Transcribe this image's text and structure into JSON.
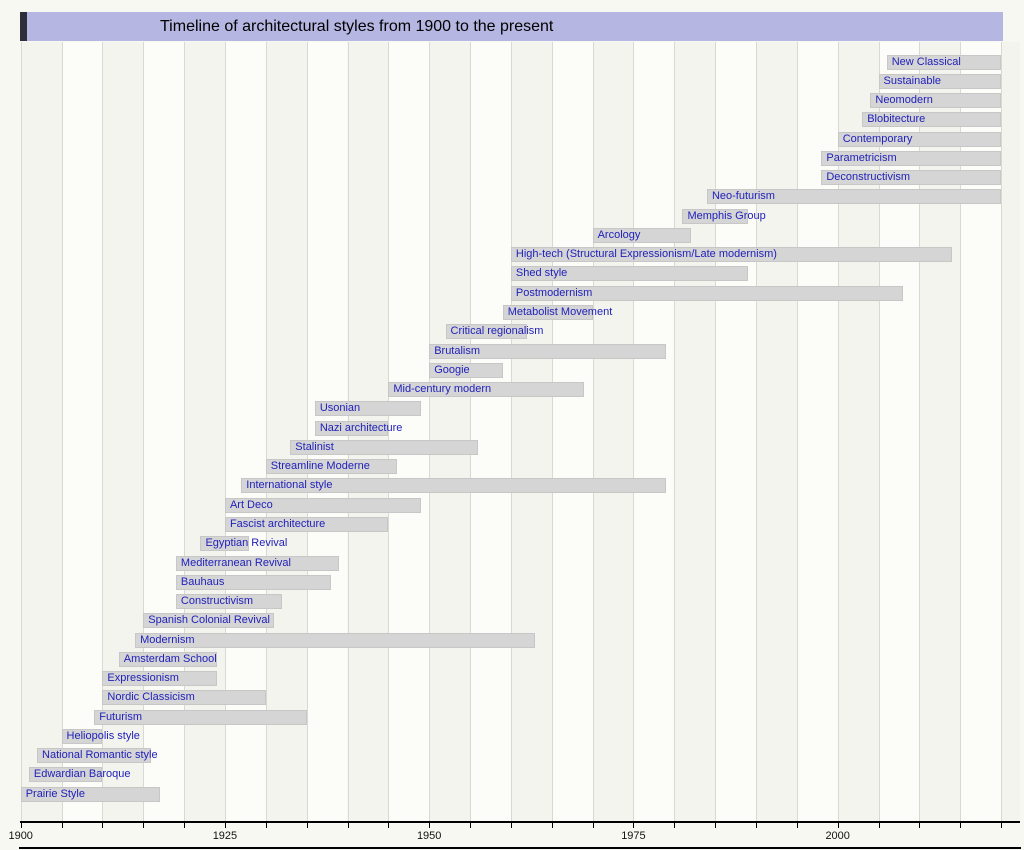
{
  "title": "Timeline of architectural styles from 1900 to the present",
  "colors": {
    "page_bg": "#f8f8f2",
    "title_bg": "#b6b6e2",
    "title_accent": "#2e2e3a",
    "band_a": "#f4f4ef",
    "band_b": "#fcfcf8",
    "grid": "#d9d9d4",
    "bar_fill": "#d5d5d5",
    "bar_border": "#c7c7c7",
    "label_text": "#2121bb",
    "axis": "#000000"
  },
  "chart_data": {
    "type": "timeline",
    "title": "Timeline of architectural styles from 1900 to the present",
    "x_axis": {
      "min": 1900,
      "max": 2022,
      "ticks_every": 5,
      "labeled_ticks": [
        1900,
        1925,
        1950,
        1975,
        2000
      ],
      "present_end": 2020,
      "grid": true
    },
    "styles": [
      {
        "label": "New Classical",
        "start": 2006,
        "end": "present"
      },
      {
        "label": "Sustainable",
        "start": 2005,
        "end": "present"
      },
      {
        "label": "Neomodern",
        "start": 2004,
        "end": "present"
      },
      {
        "label": "Blobitecture",
        "start": 2003,
        "end": "present"
      },
      {
        "label": "Contemporary",
        "start": 2000,
        "end": "present"
      },
      {
        "label": "Parametricism",
        "start": 1998,
        "end": "present"
      },
      {
        "label": "Deconstructivism",
        "start": 1998,
        "end": "present"
      },
      {
        "label": "Neo-futurism",
        "start": 1984,
        "end": "present"
      },
      {
        "label": "Memphis Group",
        "start": 1981,
        "end": 1989
      },
      {
        "label": "Arcology",
        "start": 1970,
        "end": 1982
      },
      {
        "label": "High-tech (Structural Expressionism/Late modernism)",
        "start": 1960,
        "end": 2014
      },
      {
        "label": "Shed style",
        "start": 1960,
        "end": 1989
      },
      {
        "label": "Postmodernism",
        "start": 1960,
        "end": 2008
      },
      {
        "label": "Metabolist Movement",
        "start": 1959,
        "end": 1970
      },
      {
        "label": "Critical regionalism",
        "start": 1952,
        "end": 1962
      },
      {
        "label": "Brutalism",
        "start": 1950,
        "end": 1979
      },
      {
        "label": "Googie",
        "start": 1950,
        "end": 1959
      },
      {
        "label": "Mid-century modern",
        "start": 1945,
        "end": 1969
      },
      {
        "label": "Usonian",
        "start": 1936,
        "end": 1949
      },
      {
        "label": "Nazi architecture",
        "start": 1936,
        "end": 1945
      },
      {
        "label": "Stalinist",
        "start": 1933,
        "end": 1956
      },
      {
        "label": "Streamline Moderne",
        "start": 1930,
        "end": 1946
      },
      {
        "label": "International style",
        "start": 1927,
        "end": 1979
      },
      {
        "label": "Art Deco",
        "start": 1925,
        "end": 1949
      },
      {
        "label": "Fascist architecture",
        "start": 1925,
        "end": 1945
      },
      {
        "label": "Egyptian Revival",
        "start": 1922,
        "end": 1928
      },
      {
        "label": "Mediterranean Revival",
        "start": 1919,
        "end": 1939
      },
      {
        "label": "Bauhaus",
        "start": 1919,
        "end": 1938
      },
      {
        "label": "Constructivism",
        "start": 1919,
        "end": 1932
      },
      {
        "label": "Spanish Colonial Revival",
        "start": 1915,
        "end": 1931
      },
      {
        "label": "Modernism",
        "start": 1914,
        "end": 1963
      },
      {
        "label": "Amsterdam School",
        "start": 1912,
        "end": 1924
      },
      {
        "label": "Expressionism",
        "start": 1910,
        "end": 1924
      },
      {
        "label": "Nordic Classicism",
        "start": 1910,
        "end": 1930
      },
      {
        "label": "Futurism",
        "start": 1909,
        "end": 1935
      },
      {
        "label": "Heliopolis style",
        "start": 1905,
        "end": 1910
      },
      {
        "label": "National Romantic style",
        "start": 1902,
        "end": 1916
      },
      {
        "label": "Edwardian Baroque",
        "start": 1901,
        "end": 1910
      },
      {
        "label": "Prairie Style",
        "start": 1900,
        "end": 1917
      }
    ]
  }
}
